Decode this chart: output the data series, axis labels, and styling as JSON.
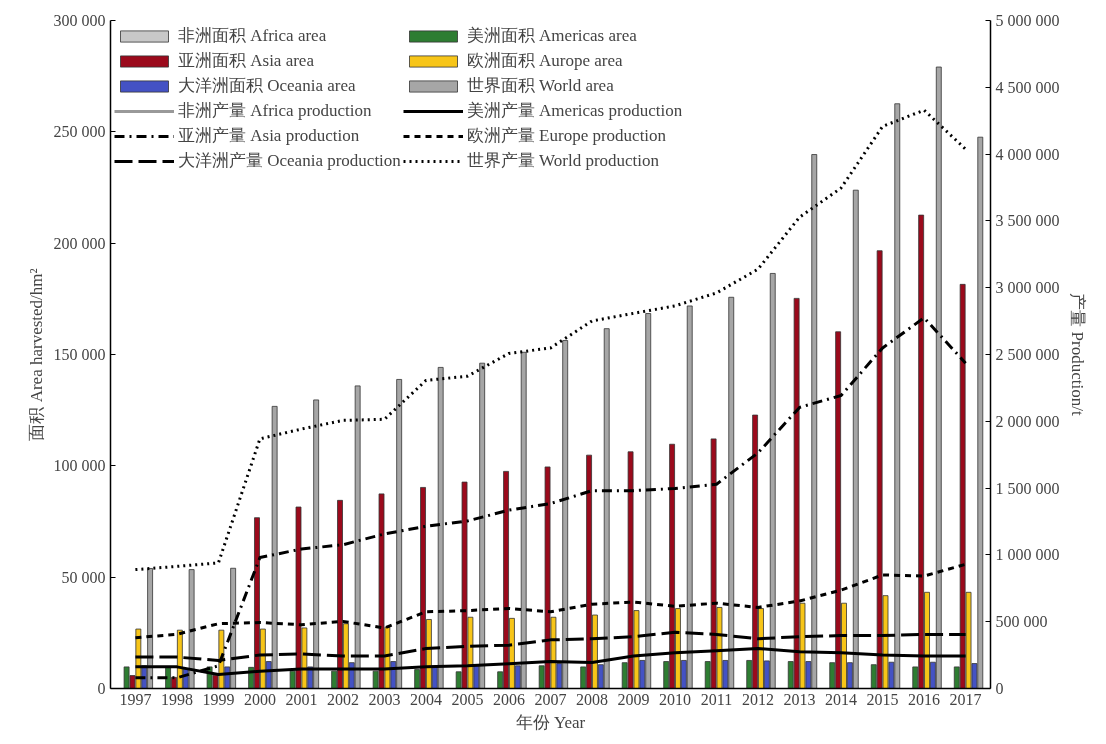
{
  "chart_data": {
    "type": "bar",
    "categories": [
      "1997",
      "1998",
      "1999",
      "2000",
      "2001",
      "2002",
      "2003",
      "2004",
      "2005",
      "2006",
      "2007",
      "2008",
      "2009",
      "2010",
      "2011",
      "2012",
      "2013",
      "2014",
      "2015",
      "2016",
      "2017"
    ],
    "xlabel": "年份 Year",
    "ylabel": "面积 Area harvested/hm²",
    "y2label": "产量 Production/t",
    "ylim": [
      0,
      300000
    ],
    "yticks": [
      {
        "value": 0,
        "label": "0"
      },
      {
        "value": 50000,
        "label": "50 000"
      },
      {
        "value": 100000,
        "label": "100 000"
      },
      {
        "value": 150000,
        "label": "150 000"
      },
      {
        "value": 200000,
        "label": "200 000"
      },
      {
        "value": 250000,
        "label": "250 000"
      },
      {
        "value": 300000,
        "label": "300 000"
      }
    ],
    "y2lim": [
      0,
      5000000
    ],
    "y2ticks": [
      {
        "value": 0,
        "label": "0"
      },
      {
        "value": 500000,
        "label": "500 000"
      },
      {
        "value": 1000000,
        "label": "1 000 000"
      },
      {
        "value": 1500000,
        "label": "1 500 000"
      },
      {
        "value": 2000000,
        "label": "2 000 000"
      },
      {
        "value": 2500000,
        "label": "2 500 000"
      },
      {
        "value": 3000000,
        "label": "3 000 000"
      },
      {
        "value": 3500000,
        "label": "3 500 000"
      },
      {
        "value": 4000000,
        "label": "4 000 000"
      },
      {
        "value": 4500000,
        "label": "4 500 000"
      },
      {
        "value": 5000000,
        "label": "5 000 000"
      }
    ],
    "grid": false,
    "legend": "top left",
    "series": [
      {
        "name": "非洲面积 Africa area",
        "color": "#c8c8c8",
        "values": [
          null,
          null,
          null,
          null,
          null,
          null,
          null,
          null,
          null,
          null,
          null,
          null,
          null,
          null,
          null,
          null,
          null,
          null,
          null,
          null,
          null
        ]
      },
      {
        "name": "美洲面积 Americas area",
        "color": "#2e7d32",
        "values": [
          9700,
          9700,
          9700,
          9500,
          7800,
          7800,
          7800,
          8500,
          7500,
          7500,
          10200,
          9700,
          11600,
          12100,
          12100,
          12600,
          12100,
          11600,
          10700,
          9700,
          9700
        ]
      },
      {
        "name": "亚洲面积 Asia area",
        "color": "#9b0a1c",
        "values": [
          5800,
          5000,
          6000,
          76700,
          81500,
          84500,
          87400,
          90300,
          92700,
          97500,
          99500,
          104800,
          106300,
          109700,
          112100,
          122800,
          175200,
          160200,
          196600,
          212600,
          181500
        ]
      },
      {
        "name": "欧洲面积 Aurope area",
        "color": "#f7c518",
        "values": [
          26700,
          26200,
          26200,
          26700,
          27200,
          29100,
          27500,
          31000,
          32000,
          31500,
          32000,
          33000,
          35000,
          35900,
          36400,
          35900,
          38300,
          38300,
          41700,
          43200,
          43200
        ]
      },
      {
        "name": "大洋洲面积 Oceania area",
        "color": "#4452c4",
        "values": [
          10200,
          8700,
          9700,
          12100,
          9700,
          11600,
          12100,
          10000,
          10200,
          10200,
          11200,
          10700,
          12600,
          12600,
          12600,
          12400,
          12100,
          11600,
          11800,
          11800,
          11200
        ]
      },
      {
        "name": "世界面积 World area",
        "color": "#a6a6a6",
        "values": [
          53900,
          53400,
          54000,
          126700,
          129600,
          135900,
          138800,
          144200,
          146100,
          151000,
          156300,
          161600,
          168400,
          171800,
          175700,
          186400,
          239800,
          223800,
          262600,
          279100,
          247600
        ]
      },
      {
        "name": "非洲产量 Africa production",
        "type": "line",
        "axis": "y2",
        "color": "#999999",
        "line_style": "solid",
        "values": [
          null,
          null,
          null,
          null,
          null,
          null,
          null,
          null,
          null,
          null,
          null,
          null,
          null,
          null,
          null,
          null,
          null,
          null,
          null,
          null,
          null
        ]
      },
      {
        "name": "美洲产量 Americas production",
        "type": "line",
        "axis": "y2",
        "color": "#000000",
        "line_style": "solid",
        "values": [
          162000,
          162000,
          105000,
          129000,
          146000,
          146000,
          146000,
          162000,
          170000,
          186000,
          202000,
          194000,
          243000,
          267000,
          283000,
          299000,
          275000,
          267000,
          251000,
          243000,
          243000
        ]
      },
      {
        "name": "亚洲产量 Asia production",
        "type": "line",
        "axis": "y2",
        "color": "#000000",
        "line_style": "dashdot",
        "values": [
          81000,
          80000,
          170000,
          980000,
          1044000,
          1076000,
          1157000,
          1214000,
          1254000,
          1335000,
          1384000,
          1481000,
          1481000,
          1497000,
          1529000,
          1764000,
          2104000,
          2193000,
          2549000,
          2775000,
          2435000
        ]
      },
      {
        "name": "欧洲产量 Europe production",
        "type": "line",
        "axis": "y2",
        "color": "#000000",
        "line_style": "dashed",
        "values": [
          380000,
          405000,
          485000,
          494000,
          477000,
          502000,
          453000,
          574000,
          583000,
          599000,
          574000,
          631000,
          647000,
          615000,
          639000,
          607000,
          655000,
          736000,
          850000,
          842000,
          930000
        ]
      },
      {
        "name": "大洋洲产量 Oceania production",
        "type": "line",
        "axis": "y2",
        "color": "#000000",
        "line_style": "longdash",
        "values": [
          235000,
          235000,
          210000,
          251000,
          259000,
          243000,
          243000,
          299000,
          316000,
          324000,
          364000,
          372000,
          388000,
          421000,
          405000,
          372000,
          388000,
          396000,
          396000,
          405000,
          405000
        ]
      },
      {
        "name": "世界产量 World production",
        "type": "line",
        "axis": "y2",
        "color": "#000000",
        "line_style": "dotted",
        "values": [
          890000,
          914000,
          940000,
          1869000,
          1942000,
          2007000,
          2015000,
          2306000,
          2338000,
          2508000,
          2549000,
          2751000,
          2808000,
          2864000,
          2961000,
          3139000,
          3528000,
          3746000,
          4207000,
          4329000,
          4037000
        ]
      }
    ]
  }
}
